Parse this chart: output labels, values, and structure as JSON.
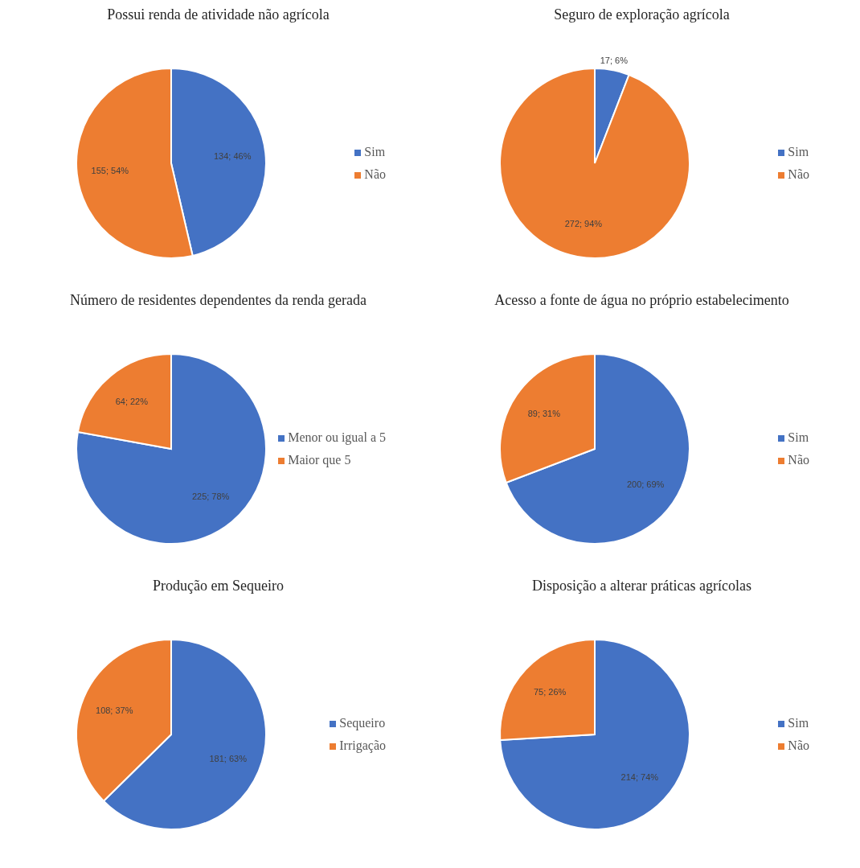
{
  "chart_data": [
    {
      "type": "pie",
      "title": "Possui renda de atividade não agrícola",
      "categories": [
        "Sim",
        "Não"
      ],
      "values": [
        134,
        155
      ],
      "colors": [
        "#4472c4",
        "#ed7d31"
      ],
      "value_labels": [
        "134; 46%",
        "155; 54%"
      ],
      "legend": "right"
    },
    {
      "type": "pie",
      "title": "Seguro de exploração agrícola",
      "categories": [
        "Sim",
        "Não"
      ],
      "values": [
        17,
        272
      ],
      "colors": [
        "#4472c4",
        "#ed7d31"
      ],
      "value_labels": [
        "17; 6%",
        "272; 94%"
      ],
      "legend": "right"
    },
    {
      "type": "pie",
      "title": "Número de residentes dependentes da renda gerada",
      "categories": [
        "Menor ou igual a 5",
        "Maior que 5"
      ],
      "values": [
        225,
        64
      ],
      "colors": [
        "#4472c4",
        "#ed7d31"
      ],
      "value_labels": [
        "225; 78%",
        "64; 22%"
      ],
      "legend": "right"
    },
    {
      "type": "pie",
      "title": "Acesso a fonte de água no próprio estabelecimento",
      "categories": [
        "Sim",
        "Não"
      ],
      "values": [
        200,
        89
      ],
      "colors": [
        "#4472c4",
        "#ed7d31"
      ],
      "value_labels": [
        "200; 69%",
        "89; 31%"
      ],
      "legend": "right"
    },
    {
      "type": "pie",
      "title": "Produção em Sequeiro",
      "categories": [
        "Sequeiro",
        "Irrigação"
      ],
      "values": [
        181,
        108
      ],
      "colors": [
        "#4472c4",
        "#ed7d31"
      ],
      "value_labels": [
        "181; 63%",
        "108; 37%"
      ],
      "legend": "right"
    },
    {
      "type": "pie",
      "title": "Disposição a alterar práticas agrícolas",
      "categories": [
        "Sim",
        "Não"
      ],
      "values": [
        214,
        75
      ],
      "colors": [
        "#4472c4",
        "#ed7d31"
      ],
      "value_labels": [
        "214; 74%",
        "75; 26%"
      ],
      "legend": "right"
    }
  ]
}
